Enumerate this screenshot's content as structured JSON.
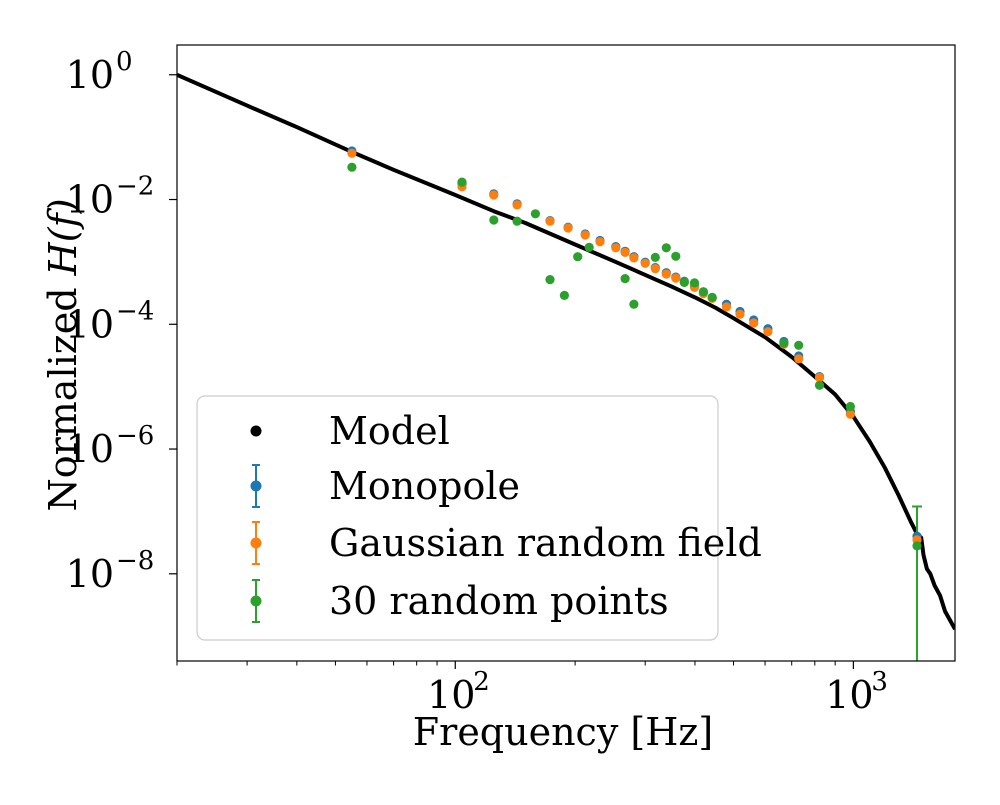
{
  "chart_data": {
    "type": "scatter",
    "title": "",
    "xlabel": "Frequency [Hz]",
    "ylabel_prefix": "Normalized ",
    "ylabel_math": "H(f)",
    "xscale": "log",
    "yscale": "log",
    "xlim": [
      20,
      1800
    ],
    "ylim": [
      4e-10,
      3.0
    ],
    "xticks": [
      {
        "value": 100,
        "base": "10",
        "exp": "2"
      },
      {
        "value": 1000,
        "base": "10",
        "exp": "3"
      }
    ],
    "yticks": [
      {
        "value": 1,
        "base": "10",
        "exp": "0"
      },
      {
        "value": 0.01,
        "base": "10",
        "exp": "−2"
      },
      {
        "value": 0.0001,
        "base": "10",
        "exp": "−4"
      },
      {
        "value": 1e-06,
        "base": "10",
        "exp": "−6"
      },
      {
        "value": 1e-08,
        "base": "10",
        "exp": "−8"
      }
    ],
    "legend_position": "lower-left",
    "model": {
      "name": "Model",
      "color": "#000000",
      "x": [
        20,
        30,
        40,
        55,
        70,
        100,
        125,
        150,
        200,
        250,
        300,
        350,
        400,
        450,
        500,
        600,
        700,
        800,
        900,
        1000,
        1100,
        1200,
        1300,
        1400,
        1450,
        1480,
        1500,
        1530,
        1560,
        1600,
        1650,
        1700,
        1800
      ],
      "y": [
        1.0,
        0.32,
        0.145,
        0.058,
        0.03,
        0.0118,
        0.0065,
        0.0042,
        0.0019,
        0.00103,
        0.00062,
        0.0004,
        0.00027,
        0.000185,
        0.000125,
        6.2e-05,
        3e-05,
        1.45e-05,
        7.5e-06,
        3.3e-06,
        1.3e-06,
        5e-07,
        1.8e-07,
        6.5e-08,
        4.2e-08,
        3.8e-08,
        2e-08,
        1.2e-08,
        1e-08,
        6.5e-09,
        4.5e-09,
        2.5e-09,
        1.3e-09
      ]
    },
    "series": [
      {
        "name": "Monopole",
        "color": "#1f77b4",
        "x": [
          55,
          104,
          125,
          143,
          173,
          192,
          212,
          231,
          253,
          267,
          281,
          300,
          318,
          339,
          358,
          376,
          399,
          420,
          442,
          480,
          519,
          562,
          610,
          669,
          729,
          822,
          983,
          1445
        ],
        "y": [
          0.06,
          0.018,
          0.0123,
          0.0085,
          0.0046,
          0.0036,
          0.0028,
          0.0022,
          0.00176,
          0.00148,
          0.00121,
          0.00099,
          0.00081,
          0.00067,
          0.00057,
          0.00049,
          0.00041,
          0.00033,
          0.000265,
          0.00021,
          0.00016,
          0.000117,
          8.5e-05,
          5.3e-05,
          3.1e-05,
          1.45e-05,
          4e-06,
          4e-08
        ]
      },
      {
        "name": "Gaussian random field",
        "color": "#ff7f0e",
        "x": [
          55,
          104,
          125,
          143,
          173,
          192,
          212,
          231,
          253,
          267,
          281,
          300,
          318,
          339,
          358,
          376,
          399,
          420,
          442,
          480,
          519,
          562,
          610,
          669,
          729,
          822,
          983,
          1445
        ],
        "y": [
          0.055,
          0.016,
          0.0118,
          0.0082,
          0.0045,
          0.0035,
          0.0027,
          0.0021,
          0.00168,
          0.00142,
          0.00116,
          0.00095,
          0.00078,
          0.00064,
          0.00055,
          0.00047,
          0.00039,
          0.00031,
          0.00026,
          0.00019,
          0.000145,
          0.000105,
          7.6e-05,
          4.8e-05,
          2.8e-05,
          1.4e-05,
          3.6e-06,
          3.5e-08
        ]
      },
      {
        "name": "30 random points",
        "color": "#2ca02c",
        "x": [
          55,
          104,
          125,
          143,
          159,
          173,
          188,
          203,
          217,
          267,
          281,
          318,
          339,
          358,
          376,
          399,
          420,
          442,
          669,
          729,
          822,
          983,
          1445
        ],
        "y": [
          0.033,
          0.019,
          0.0047,
          0.0045,
          0.0059,
          0.00052,
          0.00029,
          0.00121,
          0.00171,
          0.00054,
          0.00021,
          0.00118,
          0.00168,
          0.00123,
          0.00047,
          0.00046,
          0.00033,
          0.00027,
          5e-05,
          4.6e-05,
          1.05e-05,
          4.8e-06,
          2.8e-08
        ],
        "error_bar": {
          "x": 1445,
          "y": 2.8e-08,
          "low": 4e-10,
          "high": 1.2e-07
        }
      }
    ]
  }
}
